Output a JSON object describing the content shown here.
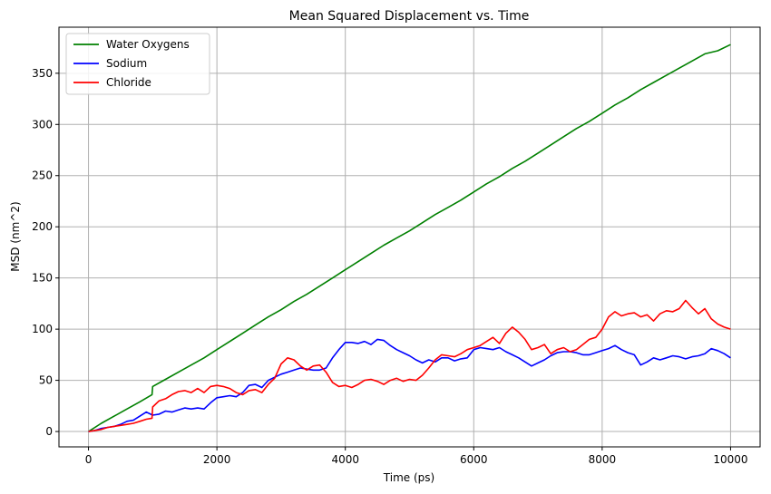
{
  "chart_data": {
    "type": "line",
    "title": "Mean Squared Displacement vs. Time",
    "xlabel": "Time (ps)",
    "ylabel": "MSD (nm^2)",
    "xlim": [
      -460,
      10460
    ],
    "ylim": [
      -15,
      395
    ],
    "xticks": [
      0,
      2000,
      4000,
      6000,
      8000,
      10000
    ],
    "yticks": [
      0,
      50,
      100,
      150,
      200,
      250,
      300,
      350
    ],
    "grid": true,
    "legend_position": "top-left",
    "series": [
      {
        "name": "Water Oxygens",
        "color": "#008000",
        "x": [
          0,
          200,
          400,
          600,
          800,
          990,
          1000,
          1200,
          1400,
          1600,
          1800,
          2000,
          2200,
          2400,
          2600,
          2800,
          3000,
          3200,
          3400,
          3600,
          3800,
          4000,
          4200,
          4400,
          4600,
          4800,
          5000,
          5200,
          5400,
          5600,
          5800,
          6000,
          6200,
          6400,
          6600,
          6800,
          7000,
          7200,
          7400,
          7600,
          7800,
          8000,
          8200,
          8400,
          8600,
          8800,
          9000,
          9200,
          9400,
          9600,
          9800,
          10000
        ],
        "values": [
          0,
          8,
          15,
          22,
          29,
          36,
          44,
          51,
          58,
          65,
          72,
          80,
          88,
          96,
          104,
          112,
          119,
          127,
          134,
          142,
          150,
          158,
          166,
          174,
          182,
          189,
          196,
          204,
          212,
          219,
          226,
          234,
          242,
          249,
          257,
          264,
          272,
          280,
          288,
          296,
          303,
          311,
          319,
          326,
          334,
          341,
          348,
          355,
          362,
          369,
          372,
          378
        ]
      },
      {
        "name": "Sodium",
        "color": "#0000ff",
        "x": [
          0,
          100,
          200,
          300,
          400,
          500,
          600,
          700,
          800,
          900,
          1000,
          1100,
          1200,
          1300,
          1400,
          1500,
          1600,
          1700,
          1800,
          1900,
          2000,
          2100,
          2200,
          2300,
          2400,
          2500,
          2600,
          2700,
          2800,
          2900,
          3000,
          3100,
          3200,
          3300,
          3400,
          3500,
          3600,
          3700,
          3800,
          3900,
          4000,
          4100,
          4200,
          4300,
          4400,
          4500,
          4600,
          4700,
          4800,
          4900,
          5000,
          5100,
          5200,
          5300,
          5400,
          5500,
          5600,
          5700,
          5800,
          5900,
          6000,
          6100,
          6200,
          6300,
          6400,
          6500,
          6600,
          6700,
          6800,
          6900,
          7000,
          7100,
          7200,
          7300,
          7400,
          7500,
          7600,
          7700,
          7800,
          7900,
          8000,
          8100,
          8200,
          8300,
          8400,
          8500,
          8600,
          8700,
          8800,
          8900,
          9000,
          9100,
          9200,
          9300,
          9400,
          9500,
          9600,
          9700,
          9800,
          9900,
          10000
        ],
        "values": [
          0,
          1,
          3,
          4,
          5,
          7,
          10,
          11,
          15,
          19,
          16,
          17,
          20,
          19,
          21,
          23,
          22,
          23,
          22,
          28,
          33,
          34,
          35,
          34,
          38,
          45,
          46,
          43,
          50,
          53,
          56,
          58,
          60,
          62,
          61,
          60,
          60,
          62,
          72,
          80,
          87,
          87,
          86,
          88,
          85,
          90,
          89,
          84,
          80,
          77,
          74,
          70,
          67,
          70,
          68,
          72,
          72,
          69,
          71,
          72,
          80,
          82,
          81,
          80,
          82,
          78,
          75,
          72,
          68,
          64,
          67,
          70,
          74,
          77,
          78,
          78,
          77,
          75,
          75,
          77,
          79,
          81,
          84,
          80,
          77,
          75,
          65,
          68,
          72,
          70,
          72,
          74,
          73,
          71,
          73,
          74,
          76,
          81,
          79,
          76,
          72
        ]
      },
      {
        "name": "Chloride",
        "color": "#ff0000",
        "x": [
          0,
          100,
          200,
          300,
          400,
          500,
          600,
          700,
          800,
          900,
          990,
          1000,
          1100,
          1200,
          1300,
          1400,
          1500,
          1600,
          1700,
          1800,
          1900,
          2000,
          2100,
          2200,
          2300,
          2400,
          2500,
          2600,
          2700,
          2800,
          2900,
          3000,
          3100,
          3200,
          3300,
          3400,
          3500,
          3600,
          3700,
          3800,
          3900,
          4000,
          4100,
          4200,
          4300,
          4400,
          4500,
          4600,
          4700,
          4800,
          4900,
          5000,
          5100,
          5200,
          5300,
          5400,
          5500,
          5600,
          5700,
          5800,
          5900,
          6000,
          6100,
          6200,
          6300,
          6400,
          6500,
          6600,
          6700,
          6800,
          6900,
          7000,
          7100,
          7200,
          7300,
          7400,
          7500,
          7600,
          7700,
          7800,
          7900,
          8000,
          8100,
          8200,
          8300,
          8400,
          8500,
          8600,
          8700,
          8800,
          8900,
          9000,
          9100,
          9200,
          9300,
          9400,
          9500,
          9600,
          9700,
          9800,
          9900,
          10000
        ],
        "values": [
          0,
          1,
          2,
          4,
          5,
          6,
          7,
          8,
          10,
          12,
          13,
          24,
          30,
          32,
          36,
          39,
          40,
          38,
          42,
          38,
          44,
          45,
          44,
          42,
          38,
          36,
          40,
          41,
          38,
          46,
          52,
          66,
          72,
          70,
          64,
          60,
          64,
          65,
          58,
          48,
          44,
          45,
          43,
          46,
          50,
          51,
          49,
          46,
          50,
          52,
          49,
          51,
          50,
          55,
          62,
          70,
          75,
          74,
          73,
          76,
          80,
          82,
          84,
          88,
          92,
          86,
          96,
          102,
          97,
          90,
          80,
          82,
          85,
          76,
          80,
          82,
          78,
          80,
          85,
          90,
          92,
          100,
          112,
          117,
          113,
          115,
          116,
          112,
          114,
          108,
          115,
          118,
          117,
          120,
          128,
          121,
          115,
          120,
          110,
          105,
          102,
          100
        ]
      }
    ]
  }
}
